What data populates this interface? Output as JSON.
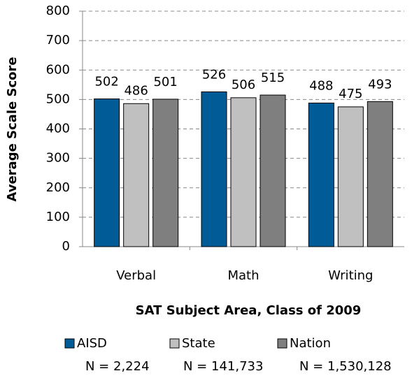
{
  "chart_data": {
    "type": "bar",
    "y_label": "Average Scale Score",
    "x_label": "SAT Subject Area, Class of 2009",
    "categories": [
      "Verbal",
      "Math",
      "Writing"
    ],
    "series": [
      {
        "name": "AISD",
        "legend_sublabel": "N = 2,224",
        "color": "#005b96",
        "values": [
          502,
          526,
          488
        ]
      },
      {
        "name": "State",
        "legend_sublabel": "N = 141,733",
        "color": "#c0c0c0",
        "values": [
          486,
          506,
          475
        ]
      },
      {
        "name": "Nation",
        "legend_sublabel": "N = 1,530,128",
        "color": "#7f7f7f",
        "values": [
          501,
          515,
          493
        ]
      }
    ],
    "ylim": [
      0,
      800
    ],
    "yticks": [
      0,
      100,
      200,
      300,
      400,
      500,
      600,
      700,
      800
    ],
    "grid": true,
    "legend_position": "bottom"
  }
}
